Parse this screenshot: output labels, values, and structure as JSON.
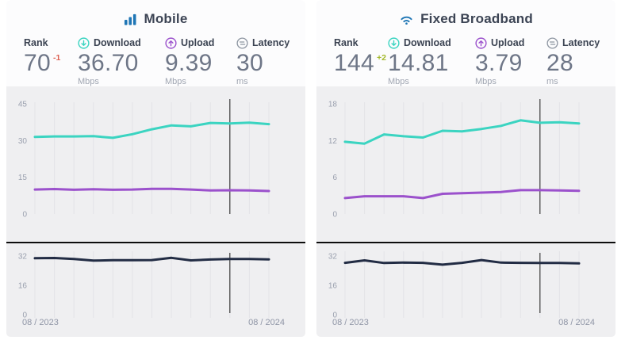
{
  "panels": [
    {
      "title": "Mobile",
      "title_icon": "signal-bars-icon",
      "stats": {
        "rank": {
          "label": "Rank",
          "value": "70",
          "change": "-1"
        },
        "download": {
          "label": "Download",
          "value": "36.70",
          "unit": "Mbps"
        },
        "upload": {
          "label": "Upload",
          "value": "9.39",
          "unit": "Mbps"
        },
        "latency": {
          "label": "Latency",
          "value": "30",
          "unit": "ms"
        }
      }
    },
    {
      "title": "Fixed Broadband",
      "title_icon": "wifi-icon",
      "stats": {
        "rank": {
          "label": "Rank",
          "value": "144",
          "change": "+2"
        },
        "download": {
          "label": "Download",
          "value": "14.81",
          "unit": "Mbps"
        },
        "upload": {
          "label": "Upload",
          "value": "3.79",
          "unit": "Mbps"
        },
        "latency": {
          "label": "Latency",
          "value": "28",
          "unit": "ms"
        }
      }
    }
  ],
  "chart_data": [
    {
      "type": "line",
      "title": "Mobile speed and latency history",
      "x_labels": [
        "08 / 2023",
        "08 / 2024"
      ],
      "points": 13,
      "cursor_index": 10,
      "grid": true,
      "main": {
        "ylim": [
          0,
          45
        ],
        "yticks": [
          45,
          30,
          15,
          0
        ],
        "series": [
          {
            "name": "Download Mbps",
            "color": "#3bd4c1",
            "values": [
              31.5,
              31.7,
              31.7,
              31.8,
              31.1,
              32.6,
              34.6,
              36.2,
              35.8,
              37.2,
              37.0,
              37.3,
              36.7
            ]
          },
          {
            "name": "Upload Mbps",
            "color": "#9b51cc",
            "values": [
              10.0,
              10.2,
              9.9,
              10.1,
              9.9,
              10.0,
              10.3,
              10.3,
              10.0,
              9.6,
              9.7,
              9.6,
              9.4
            ]
          }
        ]
      },
      "latency": {
        "ylim": [
          0,
          32
        ],
        "yticks": [
          32,
          16,
          0
        ],
        "series": [
          {
            "name": "Latency ms",
            "color": "#222c44",
            "values": [
              30.8,
              30.9,
              30.4,
              29.5,
              29.7,
              29.7,
              29.8,
              31.0,
              29.6,
              30.1,
              30.4,
              30.4,
              30.2
            ]
          }
        ]
      }
    },
    {
      "type": "line",
      "title": "Fixed Broadband speed and latency history",
      "x_labels": [
        "08 / 2023",
        "08 / 2024"
      ],
      "points": 13,
      "cursor_index": 10,
      "grid": true,
      "main": {
        "ylim": [
          0,
          18
        ],
        "yticks": [
          18,
          12,
          6,
          0
        ],
        "series": [
          {
            "name": "Download Mbps",
            "color": "#3bd4c1",
            "values": [
              11.8,
              11.5,
              13.0,
              12.7,
              12.5,
              13.6,
              13.5,
              13.9,
              14.4,
              15.3,
              14.9,
              15.0,
              14.8
            ]
          },
          {
            "name": "Upload Mbps",
            "color": "#9b51cc",
            "values": [
              2.6,
              2.9,
              2.9,
              2.9,
              2.6,
              3.3,
              3.4,
              3.5,
              3.6,
              3.9,
              3.9,
              3.85,
              3.79
            ]
          }
        ]
      },
      "latency": {
        "ylim": [
          0,
          32
        ],
        "yticks": [
          32,
          16,
          0
        ],
        "series": [
          {
            "name": "Latency ms",
            "color": "#222c44",
            "values": [
              28.3,
              29.6,
              28.2,
              28.4,
              28.3,
              27.3,
              28.3,
              29.8,
              28.4,
              28.3,
              28.2,
              28.2,
              28.0
            ]
          }
        ]
      }
    }
  ],
  "colors": {
    "accent_blue": "#1f76b5",
    "download_teal": "#3bd4c1",
    "upload_purple": "#9b51cc",
    "latency_navy": "#222c44",
    "latency_icon_gray": "#8d95a1",
    "rank_down_red": "#dc5f51",
    "rank_up_green": "#a4b92c",
    "chart_bg": "#efeff1",
    "gridline": "#e3e3e7",
    "cursor": "#1a1a1a",
    "tick_text": "#9ba1af",
    "axis_label_text": "#8f95a6"
  }
}
